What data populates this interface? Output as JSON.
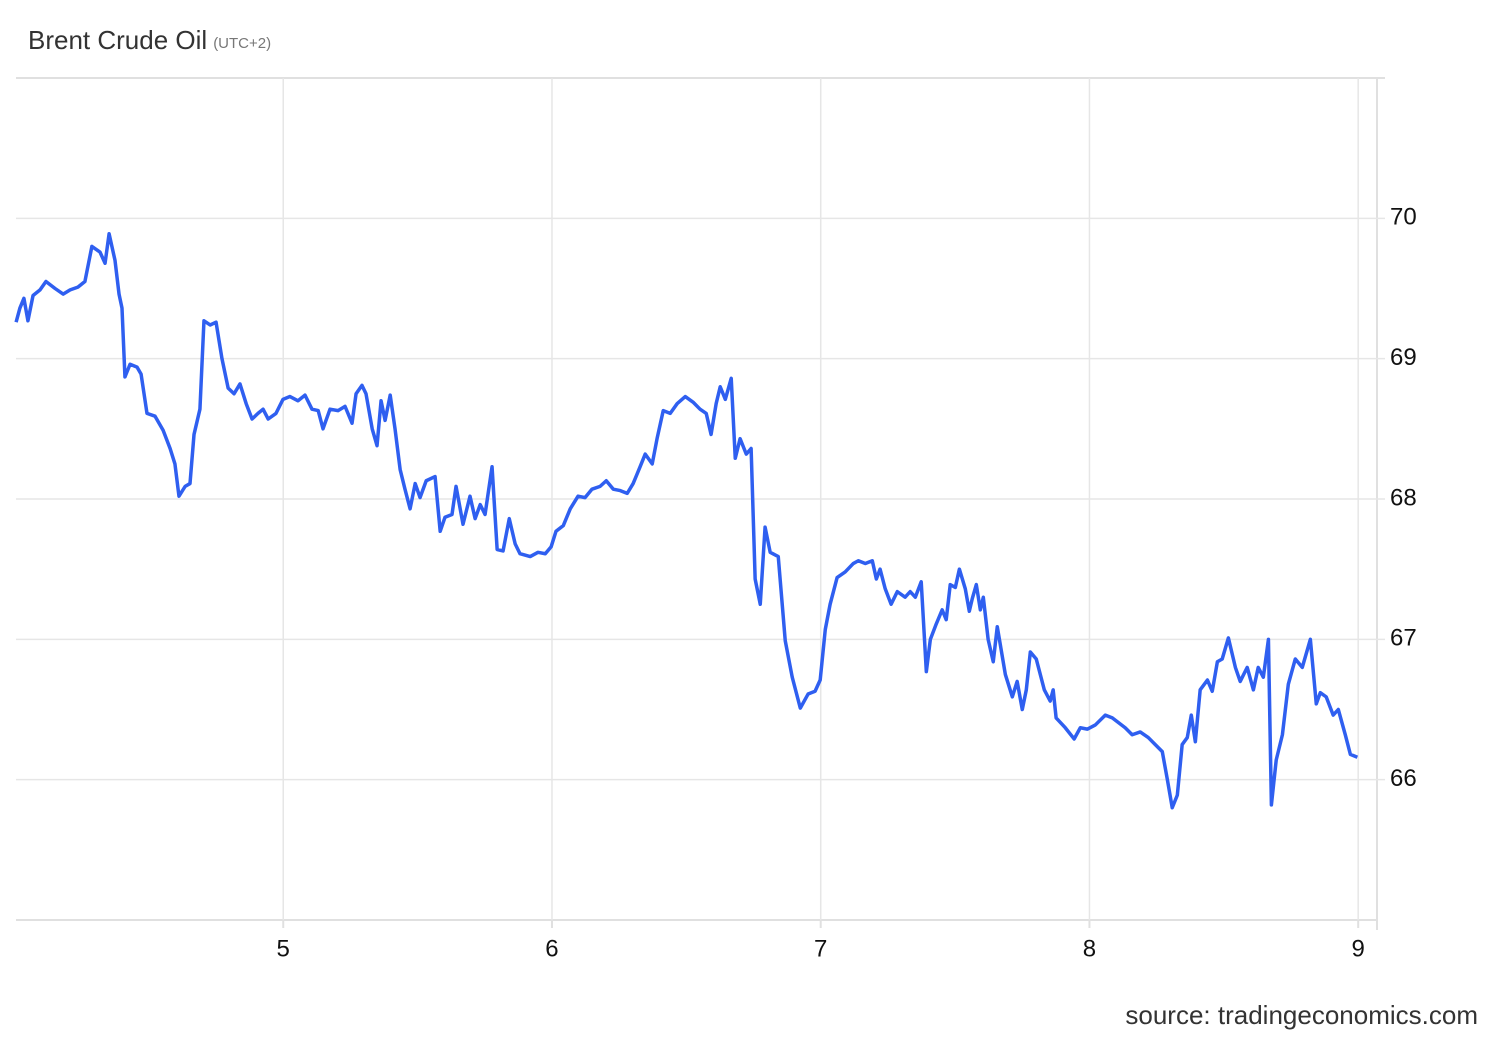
{
  "chart_data": {
    "type": "line",
    "title": "Brent Crude Oil",
    "subtitle": "(UTC+2)",
    "source": "source: tradingeconomics.com",
    "xlim": [
      4.0,
      9.07
    ],
    "xticks": [
      5,
      6,
      7,
      8,
      9
    ],
    "ylim": [
      65,
      71
    ],
    "yticks": [
      66,
      67,
      68,
      69,
      70
    ],
    "grid": true,
    "series": [
      {
        "name": "Brent Crude Oil",
        "color": "#2f5ff0",
        "x": [
          4.006,
          4.02,
          4.035,
          4.05,
          4.069,
          4.095,
          4.117,
          4.151,
          4.181,
          4.207,
          4.236,
          4.262,
          4.288,
          4.318,
          4.337,
          4.352,
          4.374,
          4.389,
          4.4,
          4.411,
          4.43,
          4.456,
          4.471,
          4.493,
          4.523,
          4.553,
          4.579,
          4.597,
          4.612,
          4.635,
          4.653,
          4.668,
          4.69,
          4.705,
          4.728,
          4.75,
          4.772,
          4.795,
          4.817,
          4.839,
          4.862,
          4.884,
          4.906,
          4.925,
          4.944,
          4.973,
          4.999,
          5.025,
          5.055,
          5.081,
          5.107,
          5.13,
          5.148,
          5.174,
          5.204,
          5.23,
          5.256,
          5.271,
          5.293,
          5.308,
          5.331,
          5.349,
          5.364,
          5.379,
          5.398,
          5.416,
          5.435,
          5.453,
          5.472,
          5.491,
          5.509,
          5.532,
          5.565,
          5.584,
          5.602,
          5.628,
          5.643,
          5.669,
          5.695,
          5.714,
          5.733,
          5.751,
          5.777,
          5.796,
          5.818,
          5.841,
          5.863,
          5.881,
          5.919,
          5.948,
          5.975,
          5.997,
          6.015,
          6.042,
          6.068,
          6.097,
          6.123,
          6.149,
          6.179,
          6.202,
          6.228,
          6.254,
          6.28,
          6.302,
          6.328,
          6.347,
          6.373,
          6.391,
          6.414,
          6.44,
          6.466,
          6.496,
          6.525,
          6.551,
          6.574,
          6.592,
          6.611,
          6.626,
          6.645,
          6.667,
          6.682,
          6.7,
          6.723,
          6.741,
          6.756,
          6.775,
          6.793,
          6.812,
          6.842,
          6.868,
          6.894,
          6.924,
          6.953,
          6.979,
          6.998,
          7.017,
          7.035,
          7.061,
          7.091,
          7.121,
          7.14,
          7.166,
          7.192,
          7.207,
          7.221,
          7.24,
          7.262,
          7.285,
          7.314,
          7.333,
          7.352,
          7.374,
          7.393,
          7.408,
          7.43,
          7.452,
          7.467,
          7.482,
          7.501,
          7.516,
          7.538,
          7.553,
          7.564,
          7.579,
          7.594,
          7.605,
          7.623,
          7.642,
          7.657,
          7.687,
          7.713,
          7.731,
          7.75,
          7.765,
          7.78,
          7.802,
          7.832,
          7.854,
          7.865,
          7.876,
          7.91,
          7.943,
          7.966,
          7.992,
          8.022,
          8.059,
          8.085,
          8.133,
          8.159,
          8.189,
          8.219,
          8.245,
          8.271,
          8.29,
          8.308,
          8.327,
          8.345,
          8.364,
          8.379,
          8.394,
          8.412,
          8.439,
          8.457,
          8.476,
          8.494,
          8.517,
          8.543,
          8.561,
          8.587,
          8.61,
          8.628,
          8.647,
          8.666,
          8.677,
          8.695,
          8.718,
          8.74,
          8.766,
          8.792,
          8.822,
          8.844,
          8.859,
          8.881,
          8.907,
          8.926,
          8.952,
          8.971,
          8.997
        ],
        "values": [
          69.26,
          69.36,
          69.43,
          69.27,
          69.45,
          69.49,
          69.55,
          69.5,
          69.46,
          69.49,
          69.51,
          69.55,
          69.8,
          69.76,
          69.68,
          69.89,
          69.7,
          69.46,
          69.36,
          68.87,
          68.96,
          68.94,
          68.89,
          68.61,
          68.59,
          68.49,
          68.36,
          68.25,
          68.02,
          68.09,
          68.11,
          68.46,
          68.64,
          69.27,
          69.24,
          69.26,
          69.0,
          68.79,
          68.75,
          68.82,
          68.68,
          68.57,
          68.61,
          68.64,
          68.57,
          68.61,
          68.71,
          68.73,
          68.7,
          68.74,
          68.64,
          68.63,
          68.5,
          68.64,
          68.63,
          68.66,
          68.54,
          68.75,
          68.81,
          68.75,
          68.5,
          68.38,
          68.7,
          68.56,
          68.74,
          68.5,
          68.21,
          68.07,
          67.93,
          68.11,
          68.01,
          68.13,
          68.16,
          67.77,
          67.87,
          67.89,
          68.09,
          67.82,
          68.02,
          67.86,
          67.96,
          67.89,
          68.23,
          67.64,
          67.63,
          67.86,
          67.68,
          67.61,
          67.59,
          67.62,
          67.61,
          67.66,
          67.77,
          67.81,
          67.93,
          68.02,
          68.01,
          68.07,
          68.09,
          68.13,
          68.07,
          68.06,
          68.04,
          68.11,
          68.23,
          68.32,
          68.25,
          68.43,
          68.63,
          68.61,
          68.68,
          68.73,
          68.69,
          68.64,
          68.61,
          68.46,
          68.68,
          68.8,
          68.71,
          68.86,
          68.29,
          68.43,
          68.32,
          68.36,
          67.43,
          67.25,
          67.8,
          67.62,
          67.59,
          66.99,
          66.73,
          66.51,
          66.61,
          66.63,
          66.71,
          67.07,
          67.25,
          67.44,
          67.48,
          67.54,
          67.56,
          67.54,
          67.56,
          67.43,
          67.5,
          67.36,
          67.25,
          67.34,
          67.3,
          67.34,
          67.3,
          67.41,
          66.77,
          67.0,
          67.11,
          67.21,
          67.14,
          67.39,
          67.37,
          67.5,
          67.36,
          67.2,
          67.29,
          67.39,
          67.21,
          67.3,
          67.0,
          66.84,
          67.09,
          66.75,
          66.59,
          66.7,
          66.5,
          66.64,
          66.91,
          66.86,
          66.64,
          66.56,
          66.64,
          66.44,
          66.37,
          66.29,
          66.37,
          66.36,
          66.39,
          66.46,
          66.44,
          66.37,
          66.32,
          66.34,
          66.3,
          66.25,
          66.2,
          66.0,
          65.8,
          65.89,
          66.25,
          66.3,
          66.46,
          66.27,
          66.64,
          66.71,
          66.63,
          66.84,
          66.86,
          67.01,
          66.8,
          66.7,
          66.8,
          66.64,
          66.8,
          66.73,
          67.0,
          65.82,
          66.14,
          66.32,
          66.68,
          66.86,
          66.8,
          67.0,
          66.54,
          66.62,
          66.59,
          66.46,
          66.5,
          66.32,
          66.18,
          66.16
        ]
      }
    ]
  }
}
